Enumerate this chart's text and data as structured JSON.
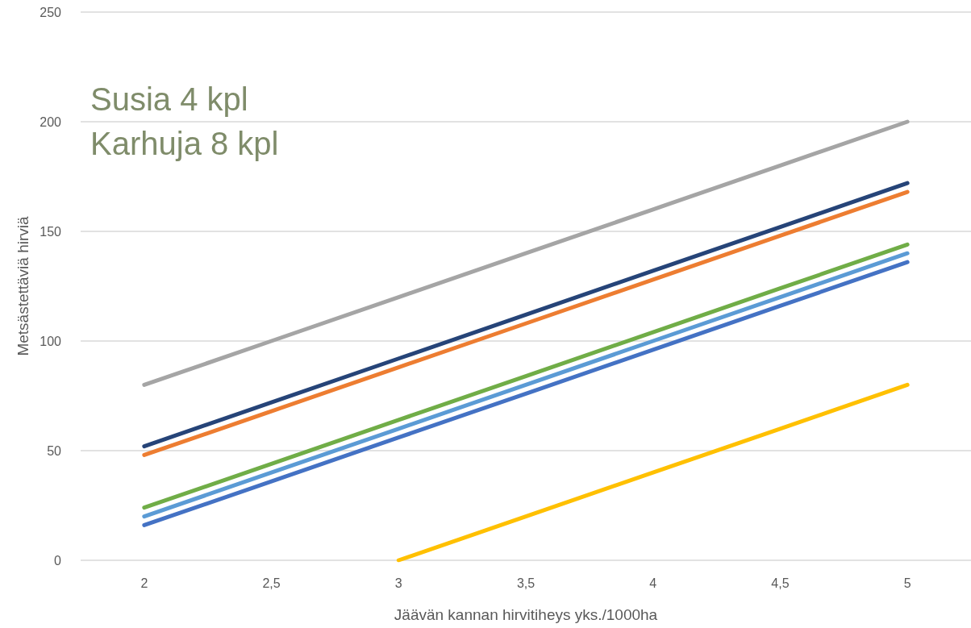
{
  "chart_data": {
    "type": "line",
    "xlabel": "Jäävän kannan hirvitiheys yks./1000ha",
    "ylabel": "Metsästettäviä hirviä",
    "categories": [
      "2",
      "2,5",
      "3",
      "3,5",
      "4",
      "4,5",
      "5"
    ],
    "ylim": [
      0,
      250
    ],
    "yticks": [
      0,
      50,
      100,
      150,
      200,
      250
    ],
    "grid": "y",
    "marker": "none",
    "line_style": "solid",
    "annotations": [
      "Susia 4 kpl",
      "Karhuja 8 kpl"
    ],
    "series": [
      {
        "color": "#a5a5a5",
        "values": [
          80,
          100,
          120,
          140,
          160,
          180,
          200
        ]
      },
      {
        "color": "#264478",
        "values": [
          52,
          72,
          92,
          112,
          132,
          152,
          172
        ]
      },
      {
        "color": "#ed7d31",
        "values": [
          48,
          68,
          88,
          108,
          128,
          148,
          168
        ]
      },
      {
        "color": "#70ad47",
        "values": [
          24,
          44,
          64,
          84,
          104,
          124,
          144
        ]
      },
      {
        "color": "#5b9bd5",
        "values": [
          20,
          40,
          60,
          80,
          100,
          120,
          140
        ]
      },
      {
        "color": "#4472c4",
        "values": [
          16,
          36,
          56,
          76,
          96,
          116,
          136
        ]
      },
      {
        "color": "#ffc000",
        "values": [
          null,
          null,
          0,
          20,
          40,
          60,
          80
        ]
      }
    ]
  }
}
